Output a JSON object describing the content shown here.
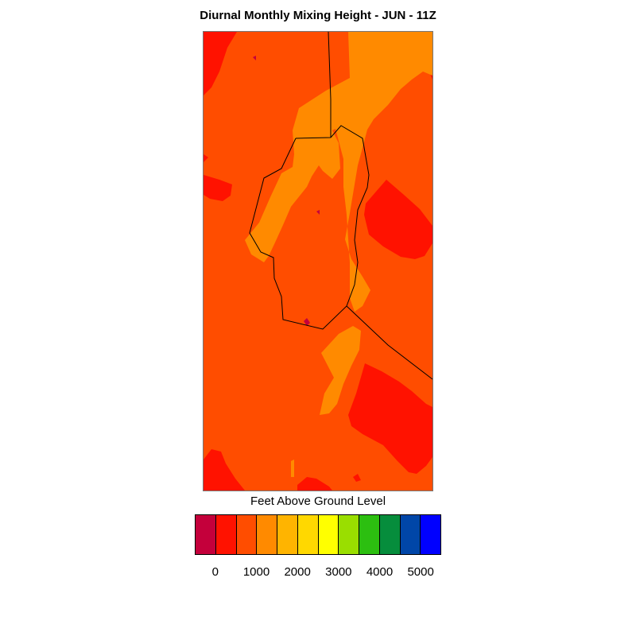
{
  "title": "Diurnal Monthly Mixing Height - JUN - 11Z",
  "colorbar": {
    "title": "Feet Above Ground Level",
    "colors": [
      "#c4003b",
      "#ff1200",
      "#ff4d00",
      "#ff8a00",
      "#ffb400",
      "#ffd800",
      "#ffff00",
      "#9ade00",
      "#2cbf10",
      "#068d3c",
      "#0046a8",
      "#0000ff"
    ],
    "tick_labels": [
      "0",
      "1000",
      "2000",
      "3000",
      "4000",
      "5000"
    ]
  },
  "map": {
    "background_color": "#ff4d00",
    "field_colors": {
      "low": "#ff1200",
      "mid": "#ff4d00",
      "high": "#ff8a00",
      "spot": "#c4003b"
    },
    "boundary_color": "#000000"
  }
}
